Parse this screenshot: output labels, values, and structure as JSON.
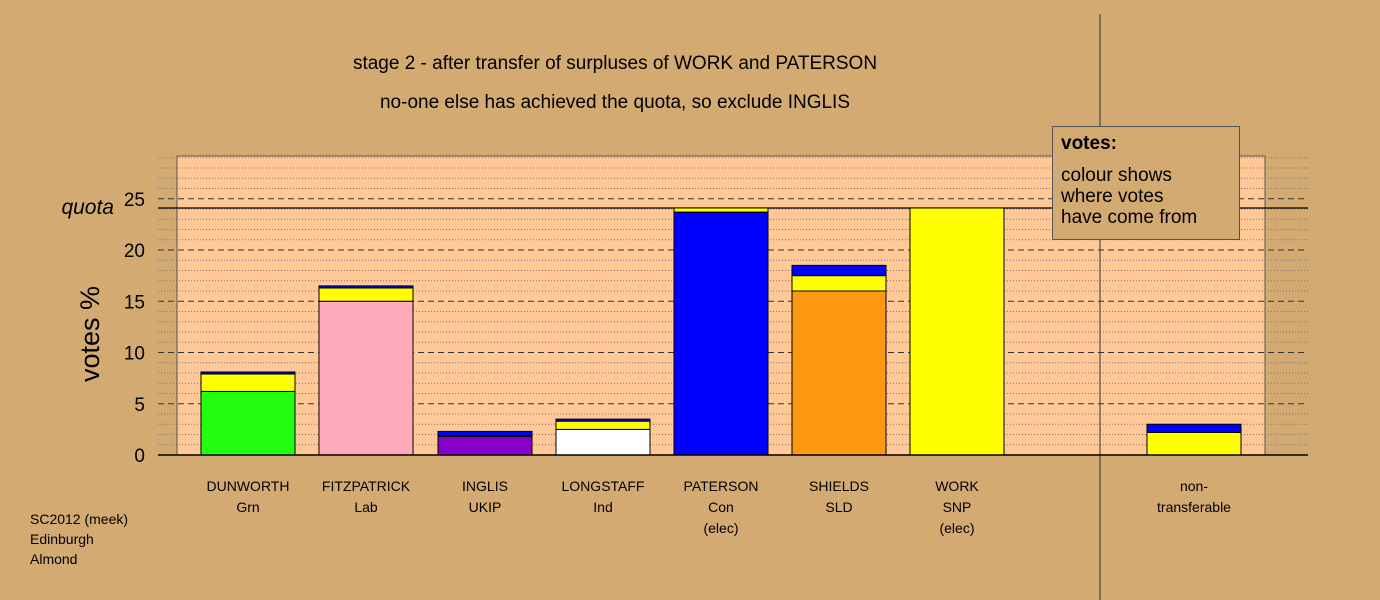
{
  "title": "stage 2 - after transfer of surpluses of WORK and PATERSON",
  "subtitle": "no-one else has achieved the quota, so exclude INGLIS",
  "legend": {
    "title": "votes:",
    "lines": [
      "colour shows",
      "where votes",
      "have come from"
    ]
  },
  "footer": [
    "SC2012 (meek)",
    "Edinburgh",
    "Almond"
  ],
  "colors": {
    "background": "#d4aa73",
    "plot_area": "#ffc896",
    "Grn": "#22ff11",
    "Lab": "#ffaabb",
    "UKIP": "#8800cc",
    "Ind": "#ffffff",
    "Con": "#0000ff",
    "SLD": "#ff9911",
    "SNP": "#ffff00"
  },
  "chart_data": {
    "type": "bar",
    "stacked": true,
    "ylabel": "votes %",
    "ylim": [
      0,
      29
    ],
    "yticks": [
      0,
      5,
      10,
      15,
      20,
      25
    ],
    "quota": 24.1,
    "quota_label": "quota",
    "grid": true,
    "categories": [
      {
        "name": "DUNWORTH",
        "party": "Grn",
        "note": ""
      },
      {
        "name": "FITZPATRICK",
        "party": "Lab",
        "note": ""
      },
      {
        "name": "INGLIS",
        "party": "UKIP",
        "note": ""
      },
      {
        "name": "LONGSTAFF",
        "party": "Ind",
        "note": ""
      },
      {
        "name": "PATERSON",
        "party": "Con",
        "note": "(elec)"
      },
      {
        "name": "SHIELDS",
        "party": "SLD",
        "note": ""
      },
      {
        "name": "WORK",
        "party": "SNP",
        "note": "(elec)"
      },
      {
        "name": "non-",
        "party": "transferable",
        "note": "",
        "separated": true
      }
    ],
    "stacks": [
      [
        {
          "source": "Grn",
          "value": 6.2
        },
        {
          "source": "SNP",
          "value": 1.7
        },
        {
          "source": "Con",
          "value": 0.2
        }
      ],
      [
        {
          "source": "Lab",
          "value": 15.0
        },
        {
          "source": "SNP",
          "value": 1.3
        },
        {
          "source": "Con",
          "value": 0.2
        }
      ],
      [
        {
          "source": "UKIP",
          "value": 1.8
        },
        {
          "source": "SNP",
          "value": 0.1
        },
        {
          "source": "Con",
          "value": 0.4
        }
      ],
      [
        {
          "source": "Ind",
          "value": 2.5
        },
        {
          "source": "SNP",
          "value": 0.8
        },
        {
          "source": "Con",
          "value": 0.2
        }
      ],
      [
        {
          "source": "Con",
          "value": 23.7
        },
        {
          "source": "SNP",
          "value": 0.4
        }
      ],
      [
        {
          "source": "SLD",
          "value": 16.0
        },
        {
          "source": "SNP",
          "value": 1.5
        },
        {
          "source": "Con",
          "value": 1.0
        }
      ],
      [
        {
          "source": "SNP",
          "value": 24.1
        }
      ],
      [
        {
          "source": "SNP",
          "value": 2.2
        },
        {
          "source": "Con",
          "value": 0.8
        }
      ]
    ]
  }
}
